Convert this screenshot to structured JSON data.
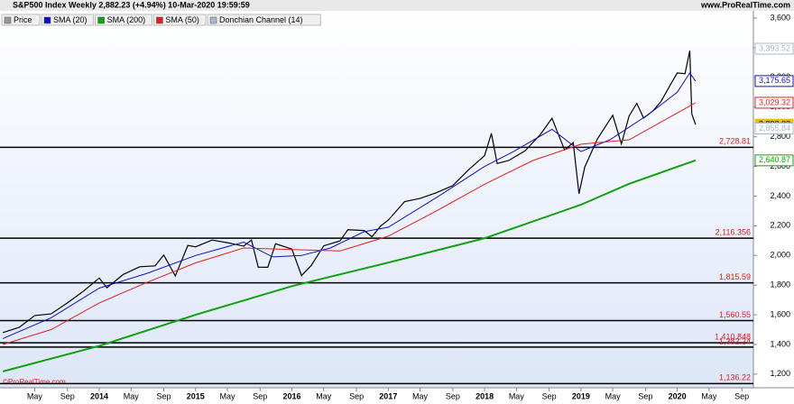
{
  "header": {
    "title": "S&P500 Index Weekly 2,882.23 (+4.94%) 10-Mar-2020 19:59:59",
    "site": "www.ProRealTime.com",
    "watermark": "©ProRealTime.com"
  },
  "chart_data": {
    "type": "line",
    "legend": [
      {
        "name": "Price",
        "color": "#999999"
      },
      {
        "name": "SMA (20)",
        "color": "#1010c0"
      },
      {
        "name": "SMA (200)",
        "color": "#10a010"
      },
      {
        "name": "SMA (50)",
        "color": "#e02020"
      },
      {
        "name": "Donchian Channel (14)",
        "color": "#a8b8c8"
      }
    ],
    "series": [
      {
        "name": "Price",
        "color": "#000000",
        "width": 1.2,
        "x": [
          2013.0,
          2013.17,
          2013.33,
          2013.5,
          2013.67,
          2013.83,
          2014.0,
          2014.08,
          2014.25,
          2014.42,
          2014.58,
          2014.67,
          2014.79,
          2014.92,
          2015.0,
          2015.17,
          2015.33,
          2015.5,
          2015.58,
          2015.65,
          2015.75,
          2015.83,
          2016.0,
          2016.1,
          2016.2,
          2016.33,
          2016.5,
          2016.58,
          2016.75,
          2016.83,
          2016.92,
          2017.0,
          2017.17,
          2017.33,
          2017.5,
          2017.67,
          2017.83,
          2018.0,
          2018.07,
          2018.13,
          2018.25,
          2018.42,
          2018.58,
          2018.7,
          2018.83,
          2018.92,
          2018.98,
          2019.04,
          2019.17,
          2019.33,
          2019.42,
          2019.5,
          2019.58,
          2019.65,
          2019.75,
          2019.83,
          2019.92,
          2020.0,
          2020.08,
          2020.13,
          2020.15,
          2020.19
        ],
        "values": [
          1480,
          1515,
          1595,
          1606,
          1680,
          1756,
          1848,
          1782,
          1872,
          1924,
          1930,
          2003,
          1862,
          2067,
          2058,
          2104,
          2086,
          2063,
          2104,
          1921,
          1920,
          2079,
          2043,
          1864,
          1932,
          2065,
          2098,
          2173,
          2168,
          2126,
          2198,
          2238,
          2363,
          2384,
          2423,
          2471,
          2575,
          2673,
          2823,
          2620,
          2640,
          2705,
          2816,
          2925,
          2711,
          2760,
          2416,
          2596,
          2784,
          2945,
          2752,
          2941,
          3025,
          2926,
          2976,
          3037,
          3141,
          3230,
          3225,
          3380,
          2954,
          2882
        ]
      },
      {
        "name": "SMA (20)",
        "color": "#1010c0",
        "width": 1,
        "x": [
          2013.0,
          2013.5,
          2014.0,
          2014.5,
          2015.0,
          2015.5,
          2015.8,
          2016.1,
          2016.4,
          2016.75,
          2017.0,
          2017.5,
          2018.0,
          2018.3,
          2018.7,
          2019.0,
          2019.3,
          2019.7,
          2020.0,
          2020.13,
          2020.19
        ],
        "values": [
          1440,
          1580,
          1780,
          1880,
          2000,
          2090,
          1990,
          2000,
          2050,
          2160,
          2190,
          2390,
          2600,
          2700,
          2850,
          2700,
          2780,
          2950,
          3100,
          3230,
          3175.65
        ]
      },
      {
        "name": "SMA (50)",
        "color": "#e02020",
        "width": 1,
        "x": [
          2013.0,
          2013.5,
          2014.0,
          2014.5,
          2015.0,
          2015.5,
          2016.0,
          2016.5,
          2017.0,
          2017.5,
          2018.0,
          2018.5,
          2019.0,
          2019.5,
          2020.0,
          2020.19
        ],
        "values": [
          1400,
          1500,
          1680,
          1820,
          1950,
          2050,
          2040,
          2030,
          2130,
          2300,
          2480,
          2640,
          2750,
          2780,
          2960,
          3029.32
        ]
      },
      {
        "name": "SMA (200)",
        "color": "#10a010",
        "width": 2,
        "x": [
          2013.0,
          2014.0,
          2015.0,
          2016.0,
          2017.0,
          2018.0,
          2019.0,
          2019.5,
          2020.19
        ],
        "values": [
          1218,
          1390,
          1600,
          1793,
          1952,
          2116,
          2342,
          2483,
          2640.87
        ]
      }
    ],
    "levels": [
      {
        "value": 2728.81,
        "label": "2,728.81"
      },
      {
        "value": 2116.356,
        "label": "2,116.356"
      },
      {
        "value": 1815.59,
        "label": "1,815.59"
      },
      {
        "value": 1560.55,
        "label": "1,560.55"
      },
      {
        "value": 1410.848,
        "label": "1,410.848"
      },
      {
        "value": 1382.24,
        "label": "1,382.24"
      },
      {
        "value": 1136.22,
        "label": "1,136.22"
      }
    ],
    "last_labels": [
      {
        "value": 3393.52,
        "label": "3,393.52",
        "color": "#a8b8c8"
      },
      {
        "value": 3175.65,
        "label": "3,175.65",
        "color": "#1010c0"
      },
      {
        "value": 3029.32,
        "label": "3,029.32",
        "color": "#e02020"
      },
      {
        "value": 2882.23,
        "label": "2,882.23",
        "color": "#e8c000"
      },
      {
        "value": 2855.84,
        "label": "2,855.84",
        "color": "#a8b8c8"
      },
      {
        "value": 2640.87,
        "label": "2,640.87",
        "color": "#10a010"
      }
    ],
    "xlim": [
      2012.97,
      2020.79
    ],
    "xticks": [
      {
        "value": 2013.33,
        "label": "May"
      },
      {
        "value": 2013.67,
        "label": "Sep"
      },
      {
        "value": 2014,
        "label": "2014"
      },
      {
        "value": 2014.33,
        "label": "May"
      },
      {
        "value": 2014.67,
        "label": "Sep"
      },
      {
        "value": 2015,
        "label": "2015"
      },
      {
        "value": 2015.33,
        "label": "May"
      },
      {
        "value": 2015.67,
        "label": "Sep"
      },
      {
        "value": 2016,
        "label": "2016"
      },
      {
        "value": 2016.33,
        "label": "May"
      },
      {
        "value": 2016.67,
        "label": "Sep"
      },
      {
        "value": 2017,
        "label": "2017"
      },
      {
        "value": 2017.33,
        "label": "May"
      },
      {
        "value": 2017.67,
        "label": "Sep"
      },
      {
        "value": 2018,
        "label": "2018"
      },
      {
        "value": 2018.33,
        "label": "May"
      },
      {
        "value": 2018.67,
        "label": "Sep"
      },
      {
        "value": 2019,
        "label": "2019"
      },
      {
        "value": 2019.33,
        "label": "May"
      },
      {
        "value": 2019.67,
        "label": "Sep"
      },
      {
        "value": 2020,
        "label": "2020"
      },
      {
        "value": 2020.33,
        "label": "May"
      },
      {
        "value": 2020.67,
        "label": "Sep"
      }
    ],
    "ylim": [
      1108,
      3649
    ],
    "yticks": [
      {
        "value": 1200,
        "label": "1,200"
      },
      {
        "value": 1400,
        "label": "1,400"
      },
      {
        "value": 1600,
        "label": "1,600"
      },
      {
        "value": 1800,
        "label": "1,800"
      },
      {
        "value": 2000,
        "label": "2,000"
      },
      {
        "value": 2200,
        "label": "2,200"
      },
      {
        "value": 2400,
        "label": "2,400"
      },
      {
        "value": 2600,
        "label": "2,600"
      },
      {
        "value": 2800,
        "label": "2,800"
      },
      {
        "value": 3000,
        "label": "3,000"
      },
      {
        "value": 3200,
        "label": "3,200"
      },
      {
        "value": 3400,
        "label": "3,400"
      },
      {
        "value": 3600,
        "label": "3,600"
      }
    ],
    "grid": false
  }
}
